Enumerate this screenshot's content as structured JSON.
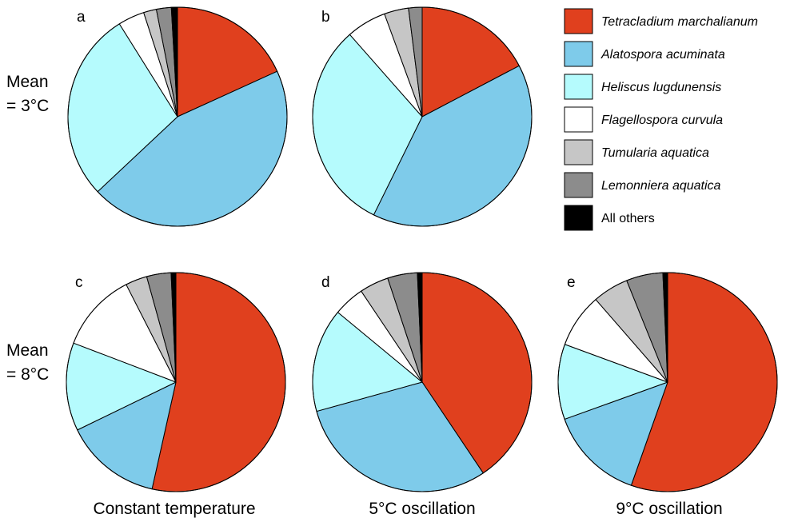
{
  "row_labels": [
    {
      "line1": "Mean",
      "line2": "= 3°C"
    },
    {
      "line1": "Mean",
      "line2": "= 8°C"
    }
  ],
  "column_labels": [
    "Constant temperature",
    "5°C oscillation",
    "9°C oscillation"
  ],
  "legend": [
    {
      "label": "Tetracladium marchalianum",
      "color": "#e0401e",
      "italic": true
    },
    {
      "label": "Alatospora acuminata",
      "color": "#7ecbea",
      "italic": true
    },
    {
      "label": "Heliscus lugdunensis",
      "color": "#b5fbfd",
      "italic": true
    },
    {
      "label": "Flagellospora curvula",
      "color": "#ffffff",
      "italic": true
    },
    {
      "label": "Tumularia aquatica",
      "color": "#c6c6c6",
      "italic": true
    },
    {
      "label": "Lemonniera aquatica",
      "color": "#8c8c8c",
      "italic": true
    },
    {
      "label": "All others",
      "color": "#000000",
      "italic": false
    }
  ],
  "chart_data": [
    {
      "type": "pie",
      "panel": "a",
      "row": 0,
      "col": 0,
      "categories": [
        "Tetracladium marchalianum",
        "Alatospora acuminata",
        "Heliscus lugdunensis",
        "Flagellospora curvula",
        "Tumularia aquatica",
        "Lemonniera aquatica",
        "All others"
      ],
      "values": [
        18.2,
        44.8,
        28.1,
        3.9,
        1.9,
        2.2,
        0.9
      ]
    },
    {
      "type": "pie",
      "panel": "b",
      "row": 0,
      "col": 1,
      "categories": [
        "Tetracladium marchalianum",
        "Alatospora acuminata",
        "Heliscus lugdunensis",
        "Flagellospora curvula",
        "Tumularia aquatica",
        "Lemonniera aquatica",
        "All others"
      ],
      "values": [
        17.3,
        40.0,
        31.2,
        5.9,
        3.6,
        2.0,
        0.0
      ]
    },
    {
      "type": "pie",
      "panel": "c",
      "row": 1,
      "col": 0,
      "categories": [
        "Tetracladium marchalianum",
        "Alatospora acuminata",
        "Heliscus lugdunensis",
        "Flagellospora curvula",
        "Tumularia aquatica",
        "Lemonniera aquatica",
        "All others"
      ],
      "values": [
        53.5,
        14.3,
        13.0,
        11.7,
        3.2,
        3.6,
        0.7
      ]
    },
    {
      "type": "pie",
      "panel": "d",
      "row": 1,
      "col": 1,
      "categories": [
        "Tetracladium marchalianum",
        "Alatospora acuminata",
        "Heliscus lugdunensis",
        "Flagellospora curvula",
        "Tumularia aquatica",
        "Lemonniera aquatica",
        "All others"
      ],
      "values": [
        40.6,
        30.1,
        15.3,
        4.6,
        4.3,
        4.4,
        0.7
      ]
    },
    {
      "type": "pie",
      "panel": "e",
      "row": 1,
      "col": 2,
      "categories": [
        "Tetracladium marchalianum",
        "Alatospora acuminata",
        "Heliscus lugdunensis",
        "Flagellospora curvula",
        "Tumularia aquatica",
        "Lemonniera aquatica",
        "All others"
      ],
      "values": [
        55.4,
        14.1,
        11.1,
        8.0,
        5.3,
        5.4,
        0.7
      ]
    }
  ]
}
